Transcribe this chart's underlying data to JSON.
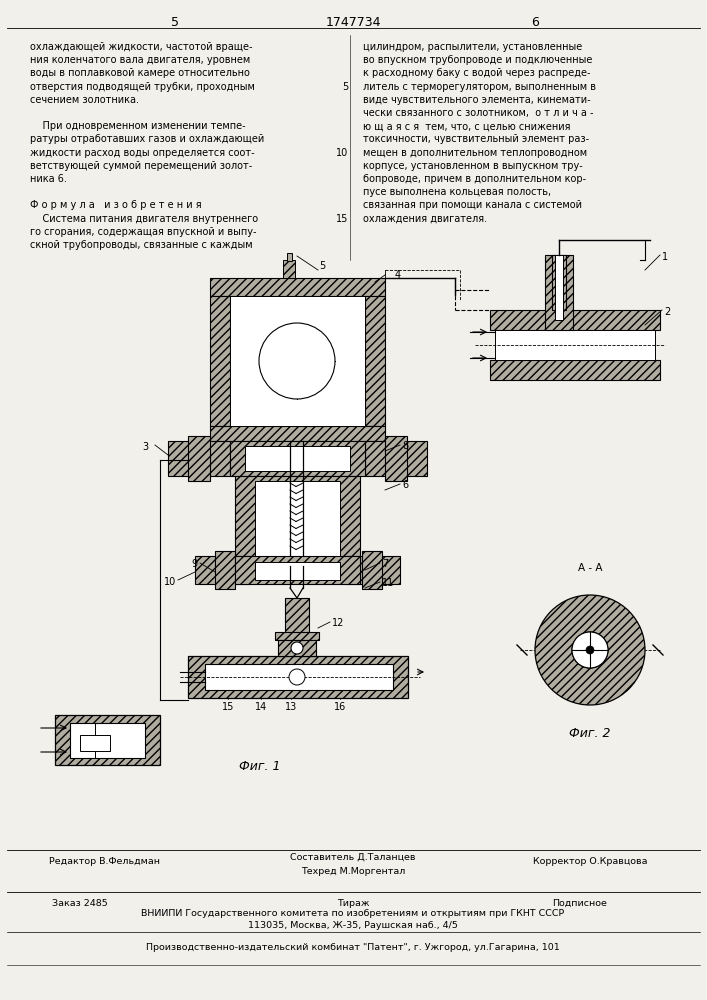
{
  "page_bg": "#f2f0eb",
  "page_width": 7.07,
  "page_height": 10.0,
  "header": {
    "left_num": "5",
    "center_num": "1747734",
    "right_num": "6"
  },
  "left_col_lines": [
    "охлаждающей жидкости, частотой враще-",
    "ния коленчатого вала двигателя, уровнем",
    "воды в поплавковой камере относительно",
    "отверстия подводящей трубки, проходным",
    "сечением золотника.",
    "",
    "    При одновременном изменении темпе-",
    "ратуры отработавших газов и охлаждающей",
    "жидкости расход воды определяется соот-",
    "ветствующей суммой перемещений золот-",
    "ника 6.",
    "",
    "Ф о р м у л а   и з о б р е т е н и я",
    "    Система питания двигателя внутреннего",
    "го сгорания, содержащая впускной и выпу-",
    "скной трубопроводы, связанные с каждым"
  ],
  "right_col_lines": [
    "цилиндром, распылители, установленные",
    "во впускном трубопроводе и подключенные",
    "к расходному баку с водой через распреде-",
    "литель с терморегулятором, выполненным в",
    "виде чувствительного элемента, кинемати-",
    "чески связанного с золотником,  о т л и ч а -",
    "ю щ а я с я  тем, что, с целью снижения",
    "токсичности, чувствительный элемент раз-",
    "мещен в дополнительном теплопроводном",
    "корпусе, установленном в выпускном тру-",
    "бопроводе, причем в дополнительном кор-",
    "пусе выполнена кольцевая полость,",
    "связанная при помощи канала с системой",
    "охлаждения двигателя.",
    ""
  ],
  "line_numbers": {
    "5_at_line": 3,
    "10_at_line": 8,
    "15_at_line": 13
  },
  "footer": {
    "editor_line": "Редактор В.Фельдман",
    "composer_line1": "Составитель Д.Таланцев",
    "composer_line2": "Техред М.Моргентал",
    "corrector_line": "Корректор О.Кравцова",
    "order_line": "Заказ 2485",
    "tirazh_line": "Тираж",
    "podpisnoe_line": "Подписное",
    "vniiipi_line1": "ВНИИПИ Государственного комитета по изобретениям и открытиям при ГКНТ СССР",
    "vniiipi_line2": "113035, Москва, Ж-35, Раушская наб., 4/5",
    "producer_line": "Производственно-издательский комбинат \"Патент\", г. Ужгород, ул.Гагарина, 101"
  },
  "hatch_color": "#b0aca0",
  "line_color": "#1a1a1a"
}
